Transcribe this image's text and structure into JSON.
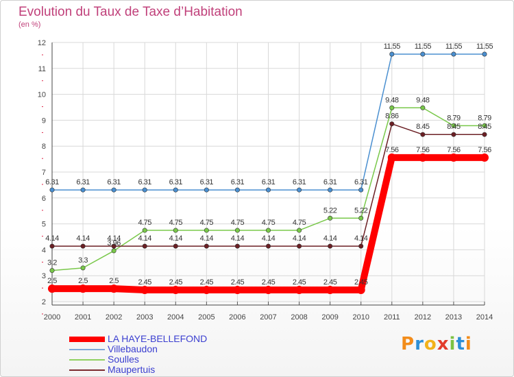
{
  "chart_data": {
    "type": "line",
    "title": "Evolution du Taux de Taxe d’Habitation",
    "subtitle": "(en %)",
    "categories": [
      "2000",
      "2001",
      "2002",
      "2003",
      "2004",
      "2005",
      "2006",
      "2007",
      "2008",
      "2009",
      "2010",
      "2011",
      "2012",
      "2013",
      "2014"
    ],
    "ylim": [
      2,
      12
    ],
    "yticks": [
      "2",
      "3",
      "4",
      "5",
      "6",
      "7",
      "8",
      "9",
      "10",
      "11",
      "12"
    ],
    "grid": true,
    "legend_position": "bottom-left",
    "series": [
      {
        "name": "Villebaudon",
        "color": "#4a8fd0",
        "values": [
          6.31,
          6.31,
          6.31,
          6.31,
          6.31,
          6.31,
          6.31,
          6.31,
          6.31,
          6.31,
          6.31,
          11.55,
          11.55,
          11.55,
          11.55
        ],
        "labels": [
          "6.31",
          "6.31",
          "6.31",
          "6.31",
          "6.31",
          "6.31",
          "6.31",
          "6.31",
          "6.31",
          "6.31",
          "6.31",
          "11.55",
          "11.55",
          "11.55",
          "11.55"
        ]
      },
      {
        "name": "Soulles",
        "color": "#79c84a",
        "values": [
          3.2,
          3.3,
          3.96,
          4.75,
          4.75,
          4.75,
          4.75,
          4.75,
          4.75,
          5.22,
          5.22,
          9.48,
          9.48,
          8.79,
          8.79
        ],
        "labels": [
          "3.2",
          "3.3",
          "3.96",
          "4.75",
          "4.75",
          "4.75",
          "4.75",
          "4.75",
          "4.75",
          "5.22",
          "5.22",
          "9.48",
          "9.48",
          "8.79",
          "8.79"
        ]
      },
      {
        "name": "Maupertuis",
        "color": "#6b1f24",
        "values": [
          4.14,
          4.14,
          4.14,
          4.14,
          4.14,
          4.14,
          4.14,
          4.14,
          4.14,
          4.14,
          4.14,
          8.86,
          8.45,
          8.45,
          8.45
        ],
        "labels": [
          "4.14",
          "4.14",
          "4.14",
          "4.14",
          "4.14",
          "4.14",
          "4.14",
          "4.14",
          "4.14",
          "4.14",
          "4.14",
          "8.86",
          "8.45",
          "8.45",
          "8.45"
        ]
      },
      {
        "name": "LA HAYE-BELLEFOND",
        "color": "#ff0000",
        "values": [
          2.5,
          2.5,
          2.5,
          2.45,
          2.45,
          2.45,
          2.45,
          2.45,
          2.45,
          2.45,
          2.45,
          7.56,
          7.56,
          7.56,
          7.56
        ],
        "labels": [
          "2.5",
          "2.5",
          "2.5",
          "2.45",
          "2.45",
          "2.45",
          "2.45",
          "2.45",
          "2.45",
          "2.45",
          "2.45",
          "7.56",
          "7.56",
          "7.56",
          "7.56"
        ]
      }
    ]
  },
  "legend": {
    "items": [
      {
        "name": "LA HAYE-BELLEFOND",
        "color": "#ff0000"
      },
      {
        "name": "Villebaudon",
        "color": "#7fa8d8"
      },
      {
        "name": "Soulles",
        "color": "#8fd060"
      },
      {
        "name": "Maupertuis",
        "color": "#7a2a2e"
      }
    ]
  },
  "logo": {
    "letters": [
      "P",
      "r",
      "o",
      "x",
      "i",
      "t",
      "i"
    ],
    "colors": [
      "#f28c1a",
      "#2c8fd6",
      "#f2b21a",
      "#e23c2c",
      "#7cc243",
      "#2c8fd6",
      "#f28c1a"
    ]
  }
}
